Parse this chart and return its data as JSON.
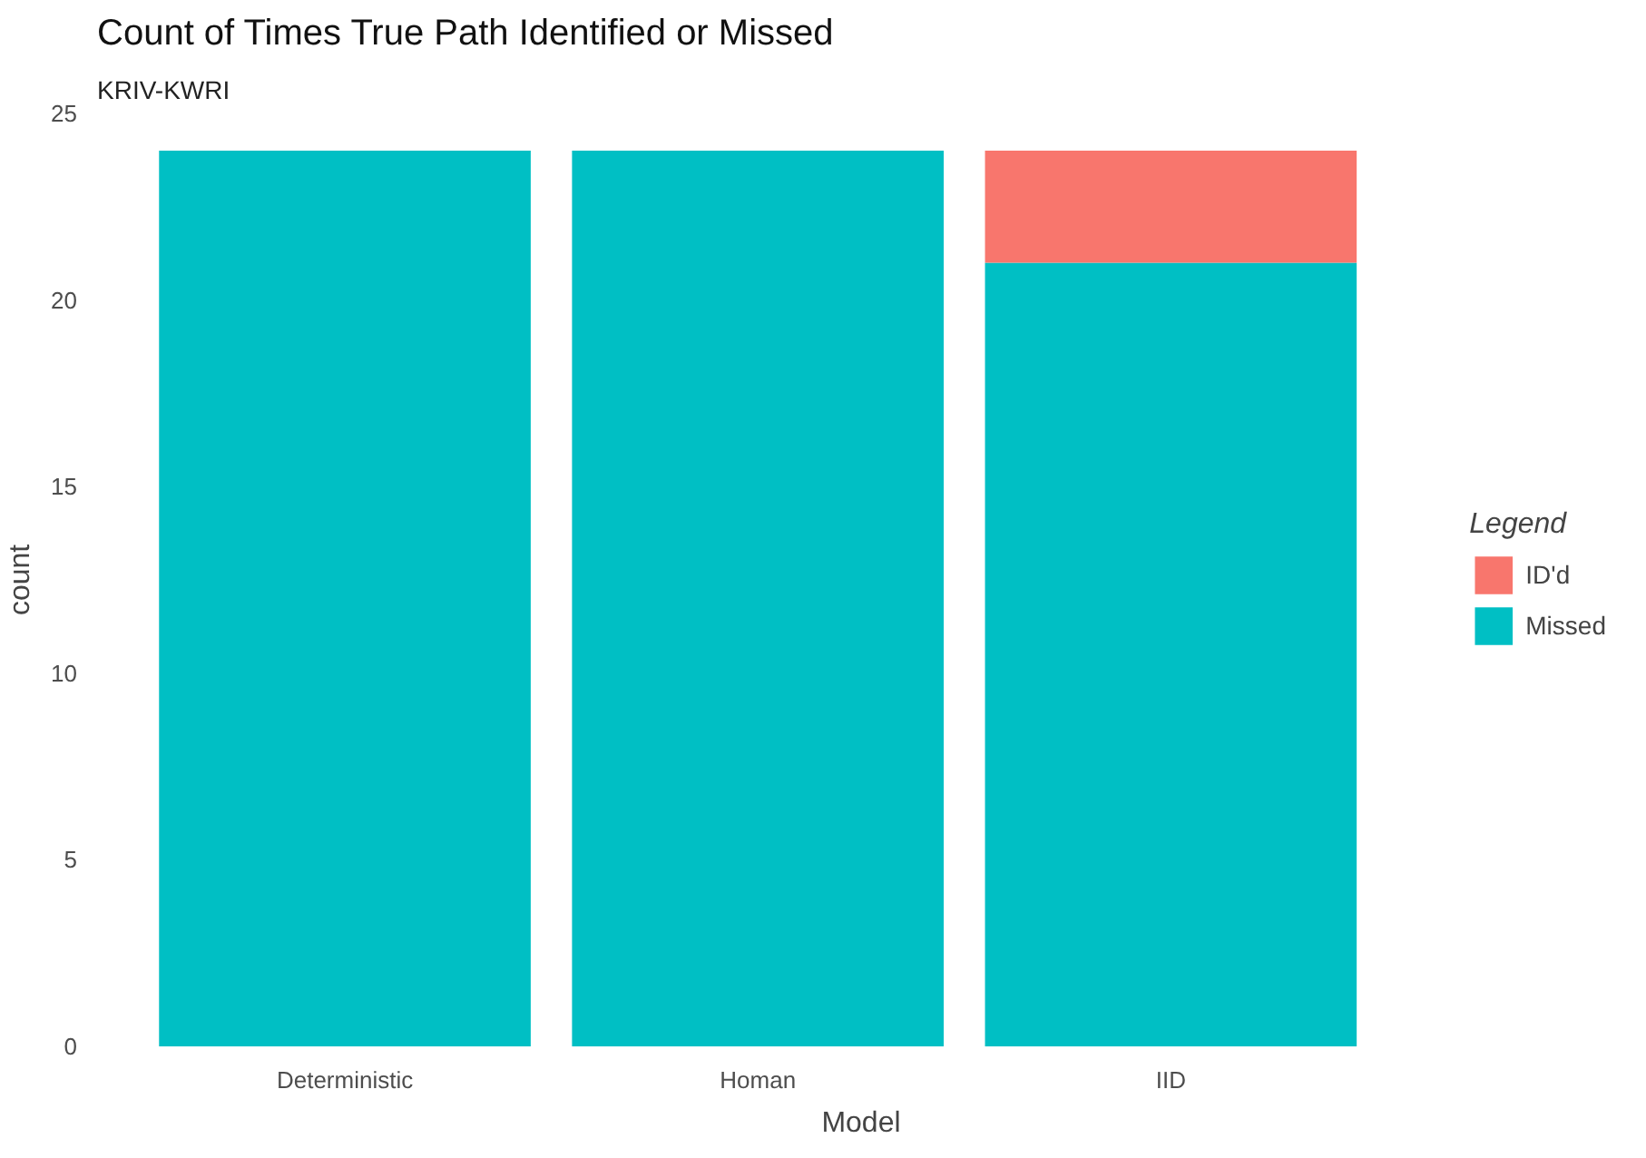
{
  "chart_data": {
    "type": "bar",
    "title": "Count of Times True Path Identified or Missed",
    "subtitle": "KRIV-KWRI",
    "xlabel": "Model",
    "ylabel": "count",
    "legend_title": "Legend",
    "categories": [
      "Deterministic",
      "Homan",
      "IID"
    ],
    "stacked": true,
    "series": [
      {
        "name": "Missed",
        "color": "#00bfc4",
        "values": [
          24,
          24,
          21
        ]
      },
      {
        "name": "ID'd",
        "color": "#f8766d",
        "values": [
          0,
          0,
          3
        ]
      }
    ],
    "ylim": [
      0,
      25
    ],
    "yticks": [
      0,
      5,
      10,
      15,
      20,
      25
    ],
    "grid": false,
    "legend": "right"
  }
}
